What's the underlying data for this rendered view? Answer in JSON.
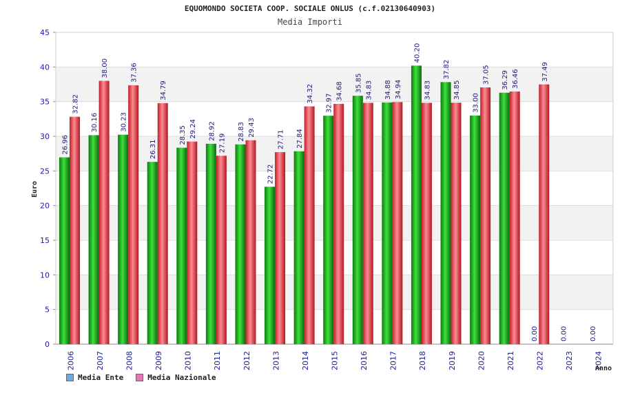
{
  "chart_data": {
    "type": "bar",
    "title": "EQUOMONDO SOCIETA COOP. SOCIALE ONLUS (c.f.02130640903)",
    "subtitle": "Media Importi",
    "xlabel": "Anno",
    "ylabel": "Euro",
    "ylim": [
      0,
      45
    ],
    "yticks": [
      0,
      5,
      10,
      15,
      20,
      25,
      30,
      35,
      40,
      45
    ],
    "categories": [
      "2006",
      "2007",
      "2008",
      "2009",
      "2010",
      "2011",
      "2012",
      "2013",
      "2014",
      "2015",
      "2016",
      "2017",
      "2018",
      "2019",
      "2020",
      "2021",
      "2022",
      "2023",
      "2024"
    ],
    "series": [
      {
        "name": "Media Ente",
        "color": "#19b219",
        "legend_color": "#6fa8e8",
        "values": [
          26.96,
          30.16,
          30.23,
          26.31,
          28.35,
          28.92,
          28.83,
          22.72,
          27.84,
          32.97,
          35.85,
          34.88,
          40.2,
          37.82,
          33.0,
          36.29,
          0.0,
          0.0,
          0.0
        ],
        "labels": [
          "26.96",
          "30.16",
          "30.23",
          "26.31",
          "28.35",
          "28.92",
          "28.83",
          "22.72",
          "27.84",
          "32.97",
          "35.85",
          "34.88",
          "40.20",
          "37.82",
          "33.00",
          "36.29",
          "0.00",
          "0.00",
          "0.00"
        ]
      },
      {
        "name": "Media Nazionale",
        "color": "#e8454f",
        "legend_color": "#e07ab0",
        "values": [
          32.82,
          38.0,
          37.36,
          34.79,
          29.24,
          27.19,
          29.43,
          27.71,
          34.32,
          34.68,
          34.83,
          34.94,
          34.83,
          34.85,
          37.05,
          36.46,
          37.49,
          null,
          null
        ],
        "labels": [
          "32.82",
          "38.00",
          "37.36",
          "34.79",
          "29.24",
          "27.19",
          "29.43",
          "27.71",
          "34.32",
          "34.68",
          "34.83",
          "34.94",
          "34.83",
          "34.85",
          "37.05",
          "36.46",
          "37.49",
          null,
          null
        ]
      }
    ],
    "grid": true,
    "legend_position": "bottom-left"
  }
}
